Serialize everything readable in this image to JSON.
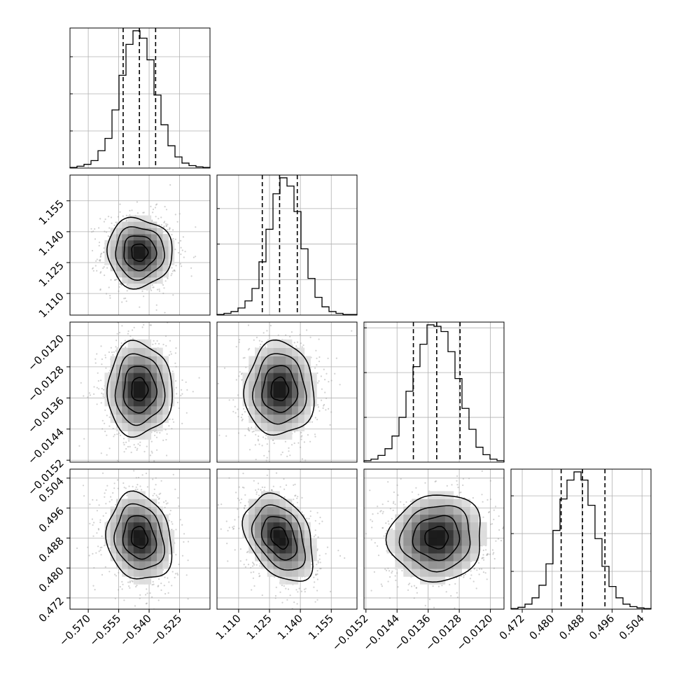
{
  "chart_data": {
    "type": "corner",
    "parameters": [
      {
        "index": 0,
        "range": [
          -0.579,
          -0.51
        ],
        "ticks": [
          -0.57,
          -0.555,
          -0.54,
          -0.525
        ],
        "tick_labels": [
          "−0.570",
          "−0.555",
          "−0.540",
          "−0.525"
        ],
        "quantiles": [
          -0.5528,
          -0.5448,
          -0.5368
        ],
        "hist_edges": [
          -0.579,
          -0.51
        ],
        "hist_heights": [
          1,
          3,
          6,
          12,
          28,
          48,
          94,
          150,
          200,
          222,
          210,
          175,
          118,
          70,
          36,
          18,
          8,
          4,
          2,
          1
        ]
      },
      {
        "index": 1,
        "range": [
          1.0995,
          1.1675
        ],
        "ticks": [
          1.11,
          1.125,
          1.14,
          1.155
        ],
        "tick_labels": [
          "1.110",
          "1.125",
          "1.140",
          "1.155"
        ],
        "quantiles": [
          1.1215,
          1.1299,
          1.1385
        ],
        "hist_edges": [
          1.0995,
          1.1675
        ],
        "hist_heights": [
          1,
          3,
          6,
          12,
          24,
          45,
          90,
          145,
          205,
          232,
          218,
          175,
          112,
          62,
          30,
          14,
          6,
          3,
          1,
          1
        ]
      },
      {
        "index": 2,
        "range": [
          -0.01525,
          -0.01165
        ],
        "ticks": [
          -0.0152,
          -0.0144,
          -0.0136,
          -0.0128,
          -0.012
        ],
        "tick_labels": [
          "−0.0152",
          "−0.0144",
          "−0.0136",
          "−0.0128",
          "−0.0120"
        ],
        "quantiles": [
          -0.01398,
          -0.01338,
          -0.01278
        ],
        "hist_edges": [
          -0.01525,
          -0.01165
        ],
        "hist_heights": [
          2,
          4,
          9,
          18,
          35,
          60,
          95,
          128,
          158,
          184,
          182,
          175,
          148,
          112,
          72,
          44,
          20,
          10,
          4,
          2
        ]
      },
      {
        "index": 3,
        "range": [
          0.469,
          0.5064
        ],
        "ticks": [
          0.472,
          0.48,
          0.488,
          0.496,
          0.504
        ],
        "tick_labels": [
          "0.472",
          "0.480",
          "0.488",
          "0.496",
          "0.504"
        ],
        "quantiles": [
          0.4824,
          0.4881,
          0.4941
        ],
        "hist_edges": [
          0.469,
          0.5064
        ],
        "hist_heights": [
          1,
          3,
          8,
          18,
          38,
          72,
          125,
          175,
          205,
          218,
          205,
          165,
          112,
          68,
          36,
          18,
          8,
          4,
          2,
          1
        ]
      }
    ],
    "covariance": {
      "1_0": [
        0.0,
        -0.02
      ],
      "2_0": [
        0.0,
        0.0
      ],
      "2_1": [
        0.0,
        0.0
      ],
      "3_0": [
        0.0,
        -0.15
      ],
      "3_1": [
        0.0,
        -0.35
      ],
      "3_2": [
        0.0,
        0.05
      ]
    },
    "sigma": [
      0.008,
      0.0084,
      0.0006,
      0.0058
    ],
    "contour_levels_sigma": [
      0.5,
      1.0,
      1.5,
      2.0
    ],
    "grid": true
  }
}
